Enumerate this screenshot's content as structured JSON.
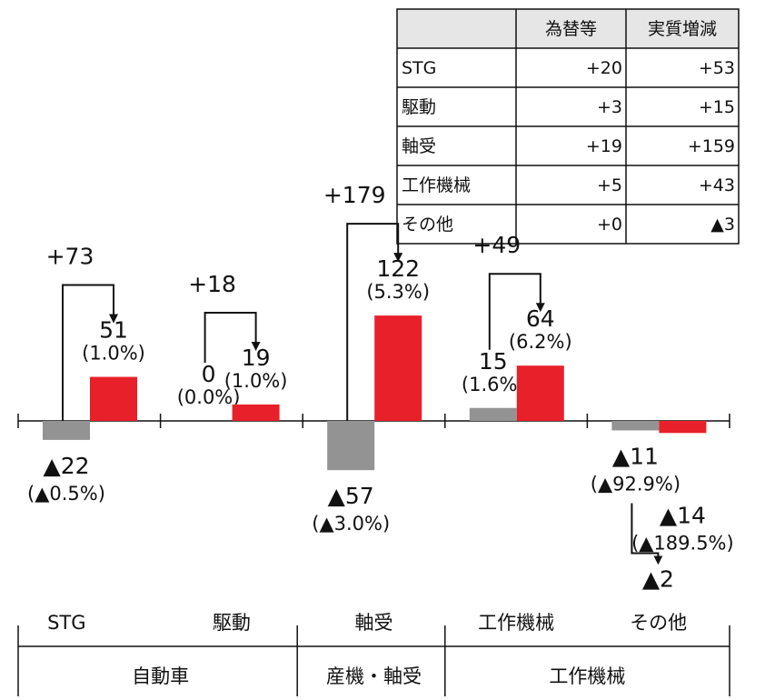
{
  "chart_data": {
    "type": "bar",
    "categories": [
      "STG",
      "駆動",
      "軸受",
      "工作機械",
      "その他"
    ],
    "groups": [
      {
        "label": "自動車",
        "span": 2
      },
      {
        "label": "産機・軸受",
        "span": 1
      },
      {
        "label": "工作機械",
        "span": 2
      }
    ],
    "series": [
      {
        "color": "#939393",
        "values": [
          -22,
          0,
          -57,
          15,
          -11
        ],
        "value_labels": [
          "▲22",
          "0",
          "▲57",
          "15",
          "▲11"
        ],
        "percent": [
          -0.5,
          0.0,
          -3.0,
          1.6,
          -92.9
        ],
        "percent_labels": [
          "(▲0.5%)",
          "(0.0%)",
          "(▲3.0%)",
          "(1.6%)",
          "(▲92.9%)"
        ]
      },
      {
        "color": "#e8202a",
        "values": [
          51,
          19,
          122,
          64,
          -14
        ],
        "value_labels": [
          "51",
          "19",
          "122",
          "64",
          "▲14"
        ],
        "percent": [
          1.0,
          1.0,
          5.3,
          6.2,
          -189.5
        ],
        "percent_labels": [
          "(1.0%)",
          "(1.0%)",
          "(5.3%)",
          "(6.2%)",
          "(▲189.5%)"
        ]
      }
    ],
    "changes": {
      "values": [
        73,
        18,
        179,
        49,
        -2
      ],
      "value_labels": [
        "+73",
        "+18",
        "+179",
        "+49",
        "▲2"
      ]
    }
  },
  "table": {
    "columns": [
      "為替等",
      "実質増減"
    ],
    "rows": [
      {
        "label": "STG",
        "cells": [
          "+20",
          "+53"
        ]
      },
      {
        "label": "駆動",
        "cells": [
          "+3",
          "+15"
        ]
      },
      {
        "label": "軸受",
        "cells": [
          "+19",
          "+159"
        ]
      },
      {
        "label": "工作機械",
        "cells": [
          "+5",
          "+43"
        ]
      },
      {
        "label": "その他",
        "cells": [
          "+0",
          "▲3"
        ]
      }
    ]
  }
}
